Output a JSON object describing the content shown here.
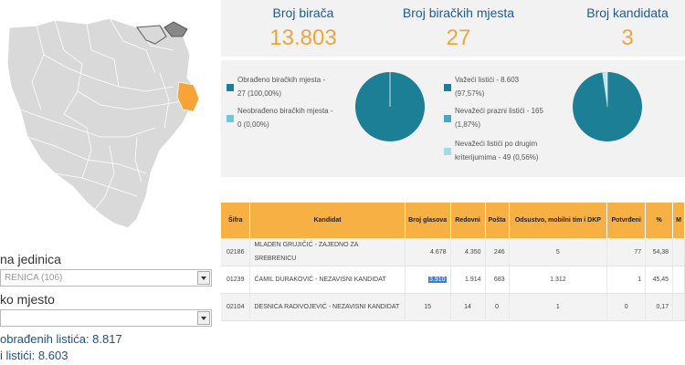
{
  "location": {
    "unit_label": "na jedinica",
    "unit_value": "RENICA (106)",
    "place_label": "ko mjesto",
    "place_value": ""
  },
  "ballots": {
    "processed": "obrađenih listića: 8.817",
    "valid": "i listići: 8.603"
  },
  "stats": [
    {
      "label": "Broj birača",
      "value": "13.803"
    },
    {
      "label": "Broj biračkih mjesta",
      "value": "27"
    },
    {
      "label": "Broj kandidata",
      "value": "3"
    }
  ],
  "colors": {
    "accent_orange": "#f6b043",
    "stat_orange": "#f2a33a",
    "pie_teal": "#1d7f95",
    "light_teal": "#6ec9dc",
    "mid_teal": "#4aa7c7",
    "title_blue": "#1f5a96"
  },
  "stations_legend": [
    {
      "line1": "Obrađeno biračkih mjesta -",
      "line2": "27 (100,00%)"
    },
    {
      "line1": "Neobrađeno biračkih mjesta -",
      "line2": "0 (0,00%)"
    }
  ],
  "ballots_legend": [
    {
      "line1": "Važeći listići - 8.603",
      "line2": "(97,57%)"
    },
    {
      "line1": "Nevažeći prazni listići - 165",
      "line2": "(1,87%)"
    },
    {
      "line1": "Nevažeći listići po drugim",
      "line2": "kriterijumima - 49 (0,56%)"
    }
  ],
  "table": {
    "headers": [
      "Šifra",
      "Kandidat",
      "Broj glasova",
      "Redovni",
      "Pošta",
      "Odsustvo, mobilni tim i DKP",
      "Potvrđeni",
      "%",
      "M"
    ],
    "rows": [
      {
        "code": "02186",
        "name": "MLADEN GRUJIČIĆ - ZAJEDNO ZA SREBRENICU",
        "votes": "4.678",
        "regular": "4.350",
        "post": "246",
        "absent": "5",
        "confirmed": "77",
        "pct": "54,38"
      },
      {
        "code": "01239",
        "name": "ĆAMIL DURAKOVIĆ - NEZAVISNI KANDIDAT",
        "votes": "3.910",
        "regular": "1.914",
        "post": "683",
        "absent": "1.312",
        "confirmed": "1",
        "pct": "45,45"
      },
      {
        "code": "02104",
        "name": "DESNICA RADIVOJEVIĆ - NEZAVISNI KANDIDAT",
        "votes": "15",
        "regular": "14",
        "post": "0",
        "absent": "1",
        "confirmed": "0",
        "pct": "0,17"
      }
    ]
  }
}
